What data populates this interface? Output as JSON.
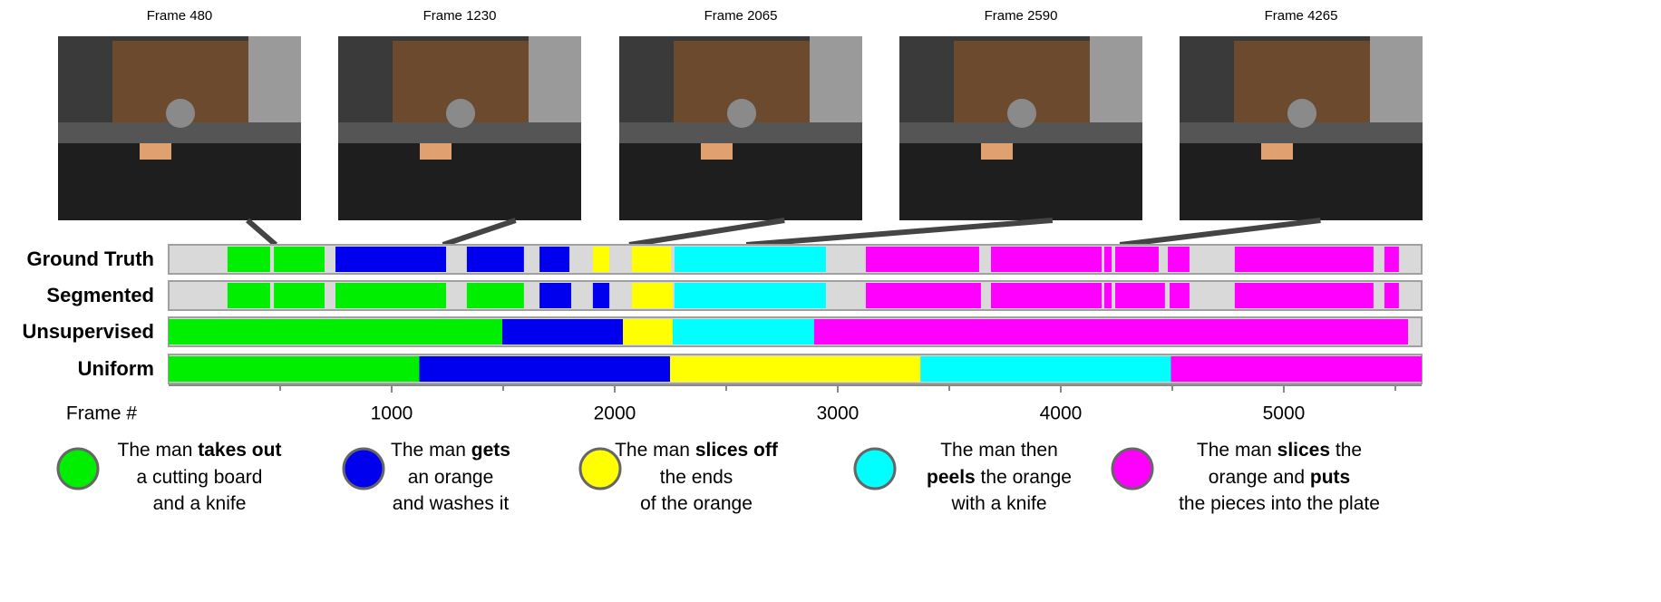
{
  "frames": [
    {
      "value": 480,
      "label": "Frame 480"
    },
    {
      "value": 1230,
      "label": "Frame 1230"
    },
    {
      "value": 2065,
      "label": "Frame 2065"
    },
    {
      "value": 2590,
      "label": "Frame 2590"
    },
    {
      "value": 4265,
      "label": "Frame 4265"
    }
  ],
  "classes": [
    {
      "color": "#00ee00"
    },
    {
      "color": "#0000ee"
    },
    {
      "color": "#ffff00"
    },
    {
      "color": "#00ffff"
    },
    {
      "color": "#ff00ff"
    }
  ],
  "rows": [
    {
      "name": "Ground Truth",
      "segments": [
        [
          264,
          455,
          0
        ],
        [
          472,
          699,
          0
        ],
        [
          748,
          1244,
          1
        ],
        [
          1337,
          1593,
          1
        ],
        [
          1663,
          1797,
          1
        ],
        [
          1902,
          1976,
          2
        ],
        [
          2077,
          2252,
          2
        ],
        [
          2268,
          2947,
          3
        ],
        [
          3126,
          3634,
          4
        ],
        [
          3687,
          4183,
          4
        ],
        [
          4195,
          4228,
          4
        ],
        [
          4244,
          4439,
          4
        ],
        [
          4480,
          4577,
          4
        ],
        [
          4780,
          5402,
          4
        ],
        [
          5451,
          5516,
          4
        ]
      ]
    },
    {
      "name": "Segmented",
      "segments": [
        [
          264,
          455,
          0
        ],
        [
          472,
          699,
          0
        ],
        [
          748,
          1244,
          0
        ],
        [
          1337,
          1593,
          0
        ],
        [
          1663,
          1805,
          1
        ],
        [
          1902,
          1976,
          1
        ],
        [
          2077,
          2260,
          2
        ],
        [
          2268,
          2947,
          3
        ],
        [
          3126,
          3642,
          4
        ],
        [
          3687,
          4183,
          4
        ],
        [
          4195,
          4228,
          4
        ],
        [
          4244,
          4467,
          4
        ],
        [
          4488,
          4577,
          4
        ],
        [
          4780,
          5402,
          4
        ],
        [
          5451,
          5516,
          4
        ]
      ]
    },
    {
      "name": "Unsupervised",
      "segments": [
        [
          0,
          1496,
          0
        ],
        [
          1496,
          2037,
          1
        ],
        [
          2037,
          2260,
          2
        ],
        [
          2260,
          2894,
          3
        ],
        [
          2894,
          5557,
          4
        ]
      ]
    },
    {
      "name": "Uniform",
      "segments": [
        [
          0,
          1124,
          0
        ],
        [
          1124,
          2248,
          1
        ],
        [
          2248,
          3371,
          2
        ],
        [
          3371,
          4494,
          3
        ],
        [
          4494,
          5618,
          4
        ]
      ]
    }
  ],
  "axis": {
    "label": "Frame #",
    "xlim": [
      0,
      5618
    ],
    "xticks": [
      1000,
      2000,
      3000,
      4000,
      5000
    ],
    "minor_xticks": [
      500,
      1500,
      2500,
      3500,
      4500,
      5500
    ]
  },
  "legend": [
    [
      [
        {
          "t": "The man "
        },
        {
          "t": "takes out",
          "b": true
        }
      ],
      [
        {
          "t": "a cutting board"
        }
      ],
      [
        {
          "t": "and a knife"
        }
      ]
    ],
    [
      [
        {
          "t": "The man "
        },
        {
          "t": "gets",
          "b": true
        }
      ],
      [
        {
          "t": "an orange"
        }
      ],
      [
        {
          "t": "and washes it"
        }
      ]
    ],
    [
      [
        {
          "t": "The man "
        },
        {
          "t": "slices off",
          "b": true
        }
      ],
      [
        {
          "t": "the ends"
        }
      ],
      [
        {
          "t": "of the orange"
        }
      ]
    ],
    [
      [
        {
          "t": "The man then"
        }
      ],
      [
        {
          "t": "peels",
          "b": true
        },
        {
          "t": " the orange"
        }
      ],
      [
        {
          "t": "with a knife"
        }
      ]
    ],
    [
      [
        {
          "t": "The man "
        },
        {
          "t": "slices",
          "b": true
        },
        {
          "t": " the"
        }
      ],
      [
        {
          "t": "orange and "
        },
        {
          "t": "puts",
          "b": true
        }
      ],
      [
        {
          "t": "the pieces into the plate"
        }
      ]
    ]
  ]
}
